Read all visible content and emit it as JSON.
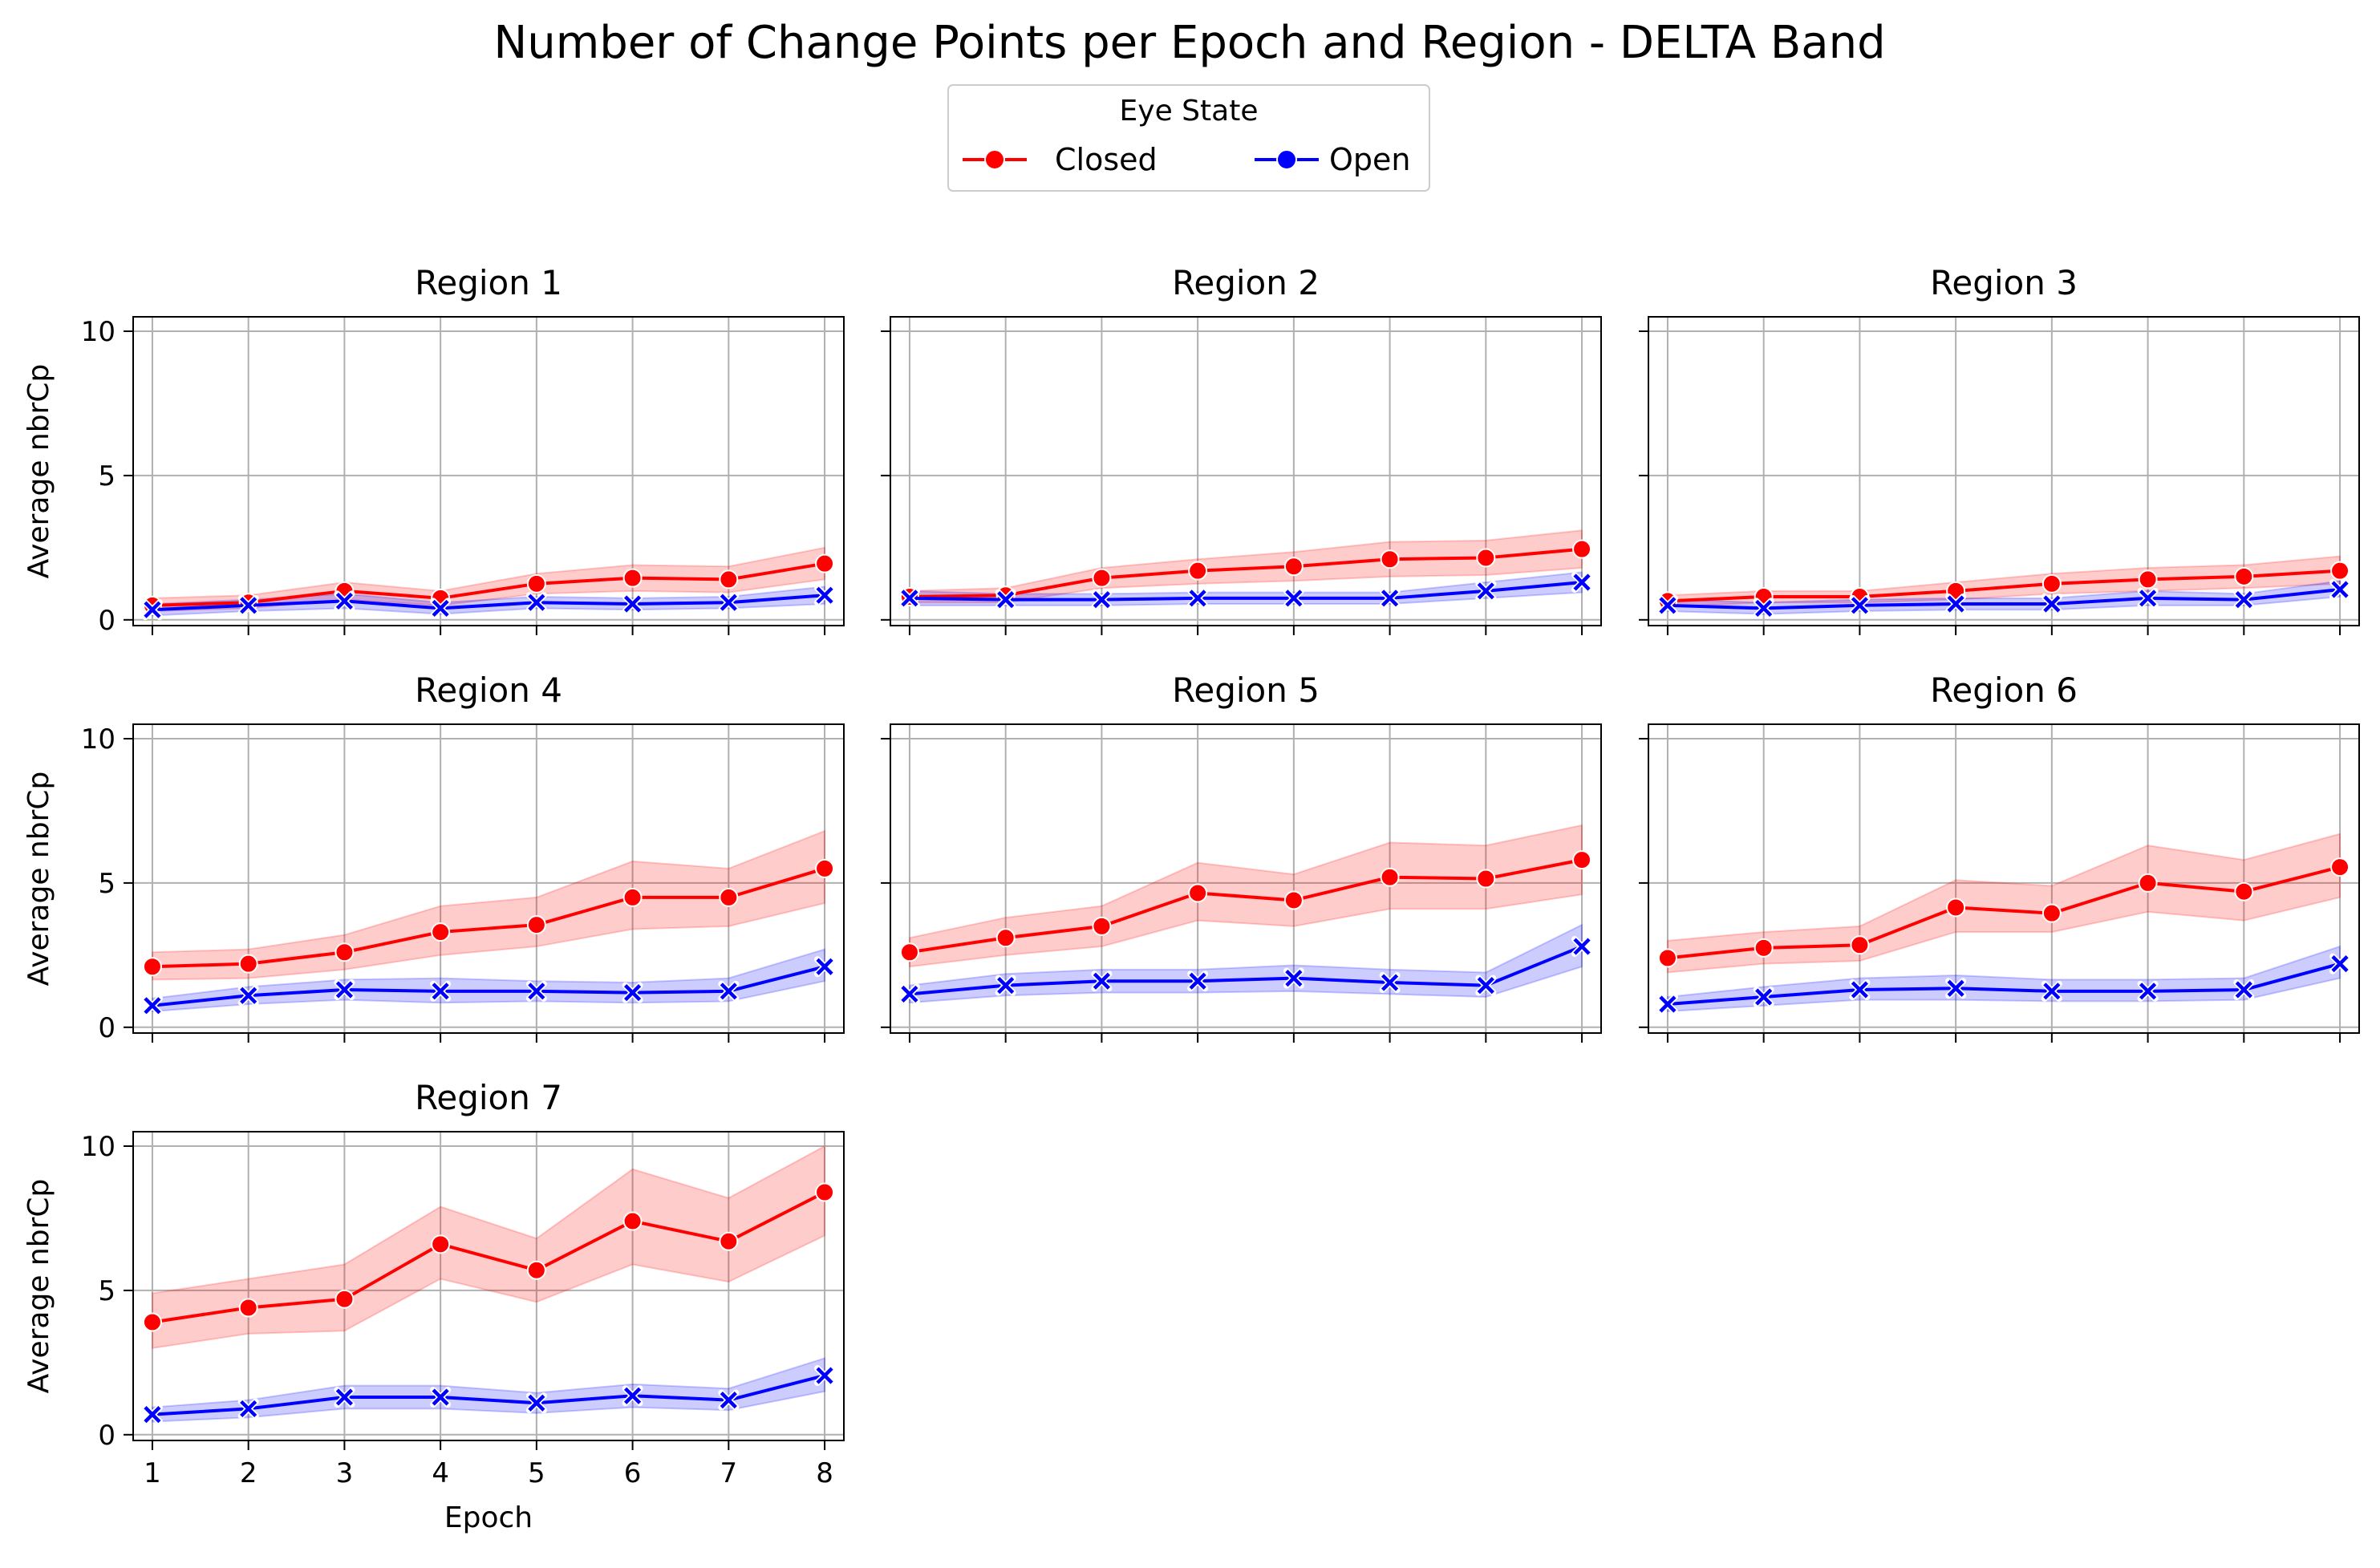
{
  "figure": {
    "title": "Number of Change Points per Epoch and Region - DELTA Band"
  },
  "legend": {
    "title": "Eye State",
    "placement": "top-center",
    "entries": [
      {
        "label": "Closed",
        "color": "#ff0000",
        "marker": "circle"
      },
      {
        "label": "Open",
        "color": "#0000ff",
        "marker": "x"
      }
    ]
  },
  "colors": {
    "closed": "#ff0000",
    "open": "#0000ff",
    "closed_band": "#ff0000",
    "open_band": "#0000ff",
    "grid": "#b0b0b0"
  },
  "axes_common": {
    "xlabel": "Epoch",
    "ylabel": "Average nbrCp",
    "x_ticks": [
      1,
      2,
      3,
      4,
      5,
      6,
      7,
      8
    ],
    "y_ticks": [
      0,
      5,
      10
    ],
    "xlim": [
      0.8,
      8.2
    ],
    "ylim": [
      -0.2,
      10.5
    ],
    "grid": true,
    "sharex": true,
    "sharey": true
  },
  "chart_data": [
    {
      "type": "line",
      "title": "Region 1",
      "x": [
        1,
        2,
        3,
        4,
        5,
        6,
        7,
        8
      ],
      "series": [
        {
          "name": "Closed",
          "values": [
            0.5,
            0.6,
            1.0,
            0.75,
            1.25,
            1.45,
            1.4,
            1.95
          ],
          "lower": [
            0.3,
            0.4,
            0.7,
            0.5,
            0.9,
            1.0,
            0.95,
            1.4
          ],
          "upper": [
            0.75,
            0.85,
            1.3,
            1.0,
            1.6,
            1.9,
            1.85,
            2.5
          ]
        },
        {
          "name": "Open",
          "values": [
            0.35,
            0.5,
            0.65,
            0.4,
            0.6,
            0.55,
            0.6,
            0.85
          ],
          "lower": [
            0.15,
            0.3,
            0.4,
            0.2,
            0.4,
            0.35,
            0.4,
            0.55
          ],
          "upper": [
            0.55,
            0.7,
            0.9,
            0.6,
            0.8,
            0.75,
            0.8,
            1.15
          ]
        }
      ]
    },
    {
      "type": "line",
      "title": "Region 2",
      "x": [
        1,
        2,
        3,
        4,
        5,
        6,
        7,
        8
      ],
      "series": [
        {
          "name": "Closed",
          "values": [
            0.8,
            0.85,
            1.45,
            1.7,
            1.85,
            2.1,
            2.15,
            2.45
          ],
          "lower": [
            0.6,
            0.6,
            1.1,
            1.25,
            1.35,
            1.5,
            1.55,
            1.8
          ],
          "upper": [
            1.0,
            1.1,
            1.8,
            2.1,
            2.35,
            2.7,
            2.75,
            3.1
          ]
        },
        {
          "name": "Open",
          "values": [
            0.75,
            0.7,
            0.7,
            0.75,
            0.75,
            0.75,
            1.0,
            1.3
          ],
          "lower": [
            0.5,
            0.5,
            0.5,
            0.55,
            0.55,
            0.55,
            0.75,
            0.95
          ],
          "upper": [
            1.0,
            0.9,
            0.9,
            0.95,
            0.95,
            0.95,
            1.3,
            1.65
          ]
        }
      ]
    },
    {
      "type": "line",
      "title": "Region 3",
      "x": [
        1,
        2,
        3,
        4,
        5,
        6,
        7,
        8
      ],
      "series": [
        {
          "name": "Closed",
          "values": [
            0.65,
            0.8,
            0.8,
            1.0,
            1.25,
            1.4,
            1.5,
            1.7
          ],
          "lower": [
            0.45,
            0.6,
            0.6,
            0.7,
            0.9,
            1.0,
            1.1,
            1.25
          ],
          "upper": [
            0.85,
            1.0,
            1.0,
            1.3,
            1.6,
            1.8,
            1.9,
            2.2
          ]
        },
        {
          "name": "Open",
          "values": [
            0.5,
            0.4,
            0.5,
            0.55,
            0.55,
            0.75,
            0.7,
            1.05
          ],
          "lower": [
            0.3,
            0.2,
            0.3,
            0.35,
            0.35,
            0.5,
            0.5,
            0.8
          ],
          "upper": [
            0.7,
            0.6,
            0.7,
            0.75,
            0.75,
            1.0,
            0.9,
            1.35
          ]
        }
      ]
    },
    {
      "type": "line",
      "title": "Region 4",
      "x": [
        1,
        2,
        3,
        4,
        5,
        6,
        7,
        8
      ],
      "series": [
        {
          "name": "Closed",
          "values": [
            2.1,
            2.2,
            2.6,
            3.3,
            3.55,
            4.5,
            4.5,
            5.5
          ],
          "lower": [
            1.65,
            1.7,
            2.0,
            2.5,
            2.8,
            3.4,
            3.5,
            4.3
          ],
          "upper": [
            2.6,
            2.7,
            3.2,
            4.2,
            4.5,
            5.75,
            5.5,
            6.8
          ]
        },
        {
          "name": "Open",
          "values": [
            0.75,
            1.1,
            1.3,
            1.25,
            1.25,
            1.2,
            1.25,
            2.1
          ],
          "lower": [
            0.55,
            0.8,
            0.95,
            0.85,
            0.9,
            0.85,
            0.9,
            1.6
          ],
          "upper": [
            1.0,
            1.4,
            1.65,
            1.7,
            1.6,
            1.55,
            1.7,
            2.7
          ]
        }
      ]
    },
    {
      "type": "line",
      "title": "Region 5",
      "x": [
        1,
        2,
        3,
        4,
        5,
        6,
        7,
        8
      ],
      "series": [
        {
          "name": "Closed",
          "values": [
            2.6,
            3.1,
            3.5,
            4.65,
            4.4,
            5.2,
            5.15,
            5.8
          ],
          "lower": [
            2.1,
            2.5,
            2.8,
            3.7,
            3.5,
            4.1,
            4.1,
            4.6
          ],
          "upper": [
            3.1,
            3.8,
            4.2,
            5.7,
            5.3,
            6.4,
            6.3,
            7.0
          ]
        },
        {
          "name": "Open",
          "values": [
            1.15,
            1.45,
            1.6,
            1.6,
            1.7,
            1.55,
            1.45,
            2.8
          ],
          "lower": [
            0.85,
            1.1,
            1.2,
            1.2,
            1.25,
            1.15,
            1.05,
            2.1
          ],
          "upper": [
            1.45,
            1.85,
            2.0,
            2.0,
            2.15,
            2.0,
            1.9,
            3.55
          ]
        }
      ]
    },
    {
      "type": "line",
      "title": "Region 6",
      "x": [
        1,
        2,
        3,
        4,
        5,
        6,
        7,
        8
      ],
      "series": [
        {
          "name": "Closed",
          "values": [
            2.4,
            2.75,
            2.85,
            4.15,
            3.95,
            5.0,
            4.7,
            5.55
          ],
          "lower": [
            1.9,
            2.2,
            2.3,
            3.3,
            3.3,
            4.0,
            3.7,
            4.5
          ],
          "upper": [
            3.0,
            3.3,
            3.5,
            5.1,
            4.9,
            6.3,
            5.8,
            6.7
          ]
        },
        {
          "name": "Open",
          "values": [
            0.8,
            1.05,
            1.3,
            1.35,
            1.25,
            1.25,
            1.3,
            2.2
          ],
          "lower": [
            0.55,
            0.75,
            0.95,
            0.95,
            0.9,
            0.9,
            0.95,
            1.7
          ],
          "upper": [
            1.05,
            1.4,
            1.7,
            1.8,
            1.65,
            1.65,
            1.7,
            2.8
          ]
        }
      ]
    },
    {
      "type": "line",
      "title": "Region 7",
      "x": [
        1,
        2,
        3,
        4,
        5,
        6,
        7,
        8
      ],
      "series": [
        {
          "name": "Closed",
          "values": [
            3.9,
            4.4,
            4.7,
            6.6,
            5.7,
            7.4,
            6.7,
            8.4
          ],
          "lower": [
            3.0,
            3.5,
            3.6,
            5.4,
            4.6,
            5.9,
            5.3,
            6.9
          ],
          "upper": [
            4.9,
            5.4,
            5.9,
            7.9,
            6.8,
            9.2,
            8.2,
            10.0
          ]
        },
        {
          "name": "Open",
          "values": [
            0.7,
            0.9,
            1.3,
            1.3,
            1.1,
            1.35,
            1.2,
            2.05
          ],
          "lower": [
            0.45,
            0.6,
            0.9,
            0.9,
            0.75,
            0.95,
            0.85,
            1.5
          ],
          "upper": [
            0.95,
            1.2,
            1.7,
            1.7,
            1.45,
            1.75,
            1.6,
            2.65
          ]
        }
      ]
    }
  ]
}
